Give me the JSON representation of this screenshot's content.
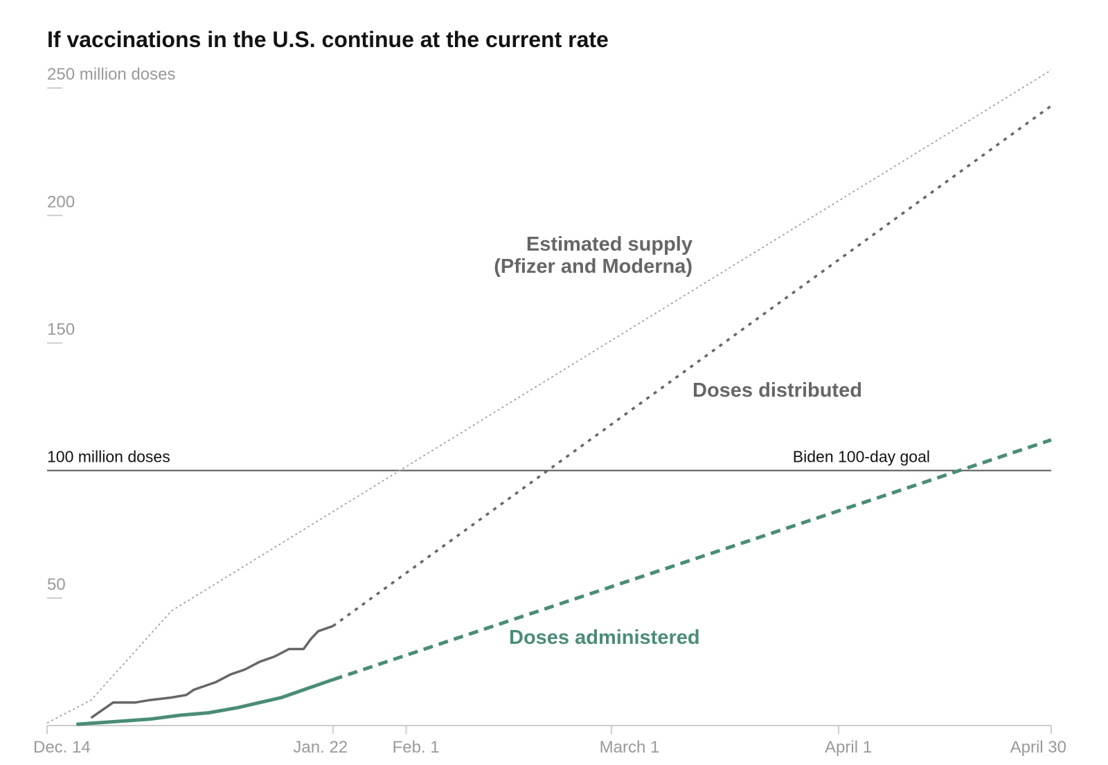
{
  "chart_data": {
    "type": "line",
    "title": "If vaccinations in the U.S. continue at the current rate",
    "y_unit_label": "250 million doses",
    "ylim": [
      0,
      256
    ],
    "yticks": [
      {
        "value": 250,
        "label": "250 million doses"
      },
      {
        "value": 200,
        "label": "200"
      },
      {
        "value": 150,
        "label": "150"
      },
      {
        "value": 50,
        "label": "50"
      }
    ],
    "x_range_days": [
      0,
      137
    ],
    "xticks": [
      {
        "day": 0,
        "label": "Dec. 14"
      },
      {
        "day": 39,
        "label": "Jan. 22"
      },
      {
        "day": 49,
        "label": "Feb. 1"
      },
      {
        "day": 77,
        "label": "March 1"
      },
      {
        "day": 108,
        "label": "April 1"
      },
      {
        "day": 137,
        "label": "April 30"
      }
    ],
    "reference_line": {
      "value": 100,
      "left_label": "100 million doses",
      "right_label": "Biden 100-day goal"
    },
    "series": [
      {
        "name": "Estimated supply (Pfizer and Moderna)",
        "style": "dotted-light",
        "color": "#a0a0a0",
        "x": [
          0,
          6,
          17,
          137
        ],
        "y": [
          1,
          10,
          45,
          257
        ]
      },
      {
        "name": "Doses distributed",
        "actual": {
          "x": [
            6,
            9,
            12,
            14,
            17,
            19,
            20,
            23,
            25,
            27,
            29,
            31,
            33,
            35,
            36,
            37,
            39
          ],
          "y": [
            3,
            9,
            9,
            10,
            11,
            12,
            14,
            17,
            20,
            22,
            25,
            27,
            30,
            30,
            34,
            37,
            39
          ]
        },
        "projected": {
          "x": [
            39,
            137
          ],
          "y": [
            39,
            243
          ]
        },
        "color": "#666666"
      },
      {
        "name": "Doses administered",
        "actual": {
          "x": [
            4,
            9,
            14,
            18,
            22,
            26,
            29,
            32,
            35,
            39
          ],
          "y": [
            0.5,
            1.5,
            2.5,
            4,
            5,
            7,
            9,
            11,
            14,
            18
          ]
        },
        "projected": {
          "x": [
            39,
            137
          ],
          "y": [
            18,
            112
          ]
        },
        "color": "#4a8c78"
      }
    ],
    "annotations": {
      "supply_line1": "Estimated supply",
      "supply_line2": "(Pfizer and Moderna)",
      "distributed": "Doses distributed",
      "administered": "Doses administered"
    },
    "colors": {
      "axis": "#cccccc",
      "tick_text": "#999999",
      "ref_line": "#333333"
    }
  }
}
